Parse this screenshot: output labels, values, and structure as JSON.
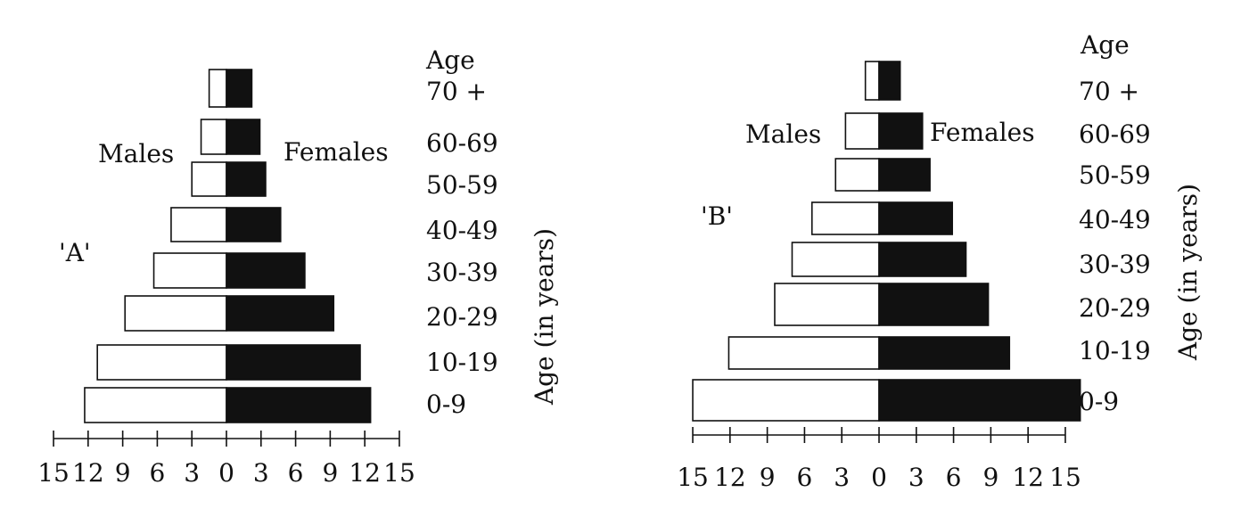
{
  "chart_data": [
    {
      "type": "bar",
      "title": "'A'",
      "left_label": "Males",
      "right_label": "Females",
      "age_header": "Age",
      "ylabel": "Age (in years)",
      "categories": [
        "70 +",
        "60-69",
        "50-59",
        "40-49",
        "30-39",
        "20-29",
        "10-19",
        "0-9"
      ],
      "series": [
        {
          "name": "Males",
          "values": [
            1.5,
            2.2,
            3.0,
            4.8,
            6.3,
            8.8,
            11.2,
            12.3
          ],
          "color": "#ffffff"
        },
        {
          "name": "Females",
          "values": [
            2.2,
            2.9,
            3.4,
            4.7,
            6.8,
            9.3,
            11.6,
            12.5
          ],
          "color": "#111111"
        }
      ],
      "xticks": [
        "15",
        "12",
        "9",
        "6",
        "3",
        "0",
        "3",
        "6",
        "9",
        "12",
        "15"
      ],
      "xlim": [
        -15,
        15
      ],
      "grid": false
    },
    {
      "type": "bar",
      "title": "'B'",
      "left_label": "Males",
      "right_label": "Females",
      "age_header": "Age",
      "ylabel": "Age (in years)",
      "categories": [
        "70 +",
        "60-69",
        "50-59",
        "40-49",
        "30-39",
        "20-29",
        "10-19",
        "0-9"
      ],
      "series": [
        {
          "name": "Males",
          "values": [
            1.1,
            2.7,
            3.5,
            5.4,
            7.0,
            8.4,
            12.1,
            15.0
          ],
          "color": "#ffffff"
        },
        {
          "name": "Females",
          "values": [
            1.7,
            3.5,
            4.1,
            5.9,
            7.0,
            8.8,
            10.5,
            16.2
          ],
          "color": "#111111"
        }
      ],
      "xticks": [
        "15",
        "12",
        "9",
        "6",
        "3",
        "0",
        "3",
        "6",
        "9",
        "12",
        "15"
      ],
      "xlim": [
        -15,
        15
      ],
      "grid": false
    }
  ]
}
